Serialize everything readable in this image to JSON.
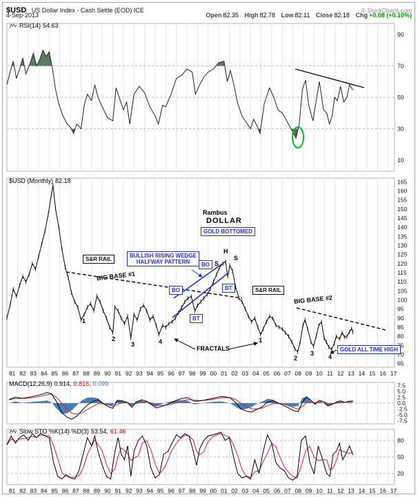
{
  "header": {
    "symbol": "$USD",
    "title": "US Dollar Index - Cash Settle (EOD) ICE",
    "copyright": "© StockCharts.com",
    "date": "4-Sep-2013",
    "quote": {
      "open_label": "Open",
      "open": "82.35",
      "high_label": "High",
      "high": "82.78",
      "low_label": "Low",
      "low": "82.11",
      "close_label": "Close",
      "close": "82.18",
      "chg_label": "Chg",
      "chg": "+0.08 (+0.10%)"
    }
  },
  "panel_labels": {
    "rsi_name": "RSI(14)",
    "rsi_value": "54.63",
    "price_name": "$USD (Monthly)",
    "price_value": "82.18",
    "macd_name": "MACD(12,26,9)",
    "macd_v1": "0.914,",
    "macd_v2": "0.816,",
    "macd_v3": "0.099",
    "sto_name": "Slow STO %K(14) %D(3)",
    "sto_v1": "53.54,",
    "sto_v2": "61.46"
  },
  "annotations": {
    "rambus": "Rambus",
    "dollar": "DOLLAR",
    "gold_bottomed": "GOLD BOTTOMED",
    "wedge_line1": "BULLISH RISING WEDGE",
    "wedge_line2": "HALFWAY PATTERN",
    "sr_rail": "S&R RAIL",
    "big_base_1": "BIG BASE #1",
    "big_base_2": "BIG BASE #2",
    "fractals": "FRACTALS",
    "gold_ath": "GOLD ALL TIME HIGH",
    "bo": "BO",
    "bt": "BT",
    "head": "H",
    "shoulder": "S",
    "n1": "1",
    "n2": "2",
    "n3": "3",
    "n4": "4"
  },
  "x_axis_labels": [
    "81",
    "82",
    "83",
    "84",
    "85",
    "86",
    "87",
    "88",
    "89",
    "90",
    "91",
    "92",
    "93",
    "94",
    "95",
    "96",
    "97",
    "98",
    "99",
    "00",
    "01",
    "02",
    "03",
    "04",
    "05",
    "06",
    "07",
    "08",
    "09",
    "10",
    "11",
    "12",
    "13",
    "14",
    "15",
    "16",
    "17"
  ],
  "chart_data": [
    {
      "type": "line",
      "panel": "rsi",
      "title": "RSI(14) 54.63",
      "ylim": [
        3,
        97
      ],
      "yticks": [
        90,
        70,
        50,
        30,
        10
      ],
      "hlines": [
        70,
        50,
        30
      ],
      "last_value": 54.63,
      "colors": {
        "line": "#222222",
        "fill_high": "#5c7a5c",
        "fill_low": "#7a5c5c"
      },
      "series": [
        {
          "name": "RSI(14)",
          "x": [
            1981.0,
            1981.3,
            1981.6,
            1981.9,
            1982.2,
            1982.5,
            1982.8,
            1983.2,
            1983.5,
            1983.8,
            1984.1,
            1984.4,
            1984.7,
            1985.0,
            1985.3,
            1985.6,
            1985.9,
            1986.3,
            1986.7,
            1987.0,
            1987.3,
            1987.6,
            1988.0,
            1988.3,
            1988.6,
            1989.0,
            1989.3,
            1989.6,
            1990.0,
            1990.5,
            1991.0,
            1991.3,
            1991.6,
            1992.0,
            1992.3,
            1992.6,
            1993.0,
            1993.5,
            1994.0,
            1994.5,
            1995.0,
            1995.3,
            1995.7,
            1996.0,
            1996.5,
            1997.0,
            1997.5,
            1998.0,
            1998.5,
            1998.8,
            1999.2,
            1999.6,
            2000.0,
            2000.5,
            2001.0,
            2001.5,
            2001.8,
            2002.1,
            2002.4,
            2002.8,
            2003.2,
            2003.6,
            2004.0,
            2004.3,
            2004.6,
            2004.9,
            2005.3,
            2005.8,
            2006.2,
            2006.6,
            2007.0,
            2007.5,
            2008.0,
            2008.3,
            2008.6,
            2008.9,
            2009.2,
            2009.5,
            2009.9,
            2010.2,
            2010.5,
            2010.9,
            2011.2,
            2011.45,
            2011.7,
            2011.95,
            2012.2,
            2012.5,
            2012.8,
            2013.1,
            2013.35,
            2013.67
          ],
          "y": [
            58,
            66,
            73,
            62,
            68,
            75,
            65,
            72,
            78,
            70,
            74,
            80,
            76,
            79,
            68,
            55,
            46,
            38,
            33,
            31,
            27,
            33,
            30,
            45,
            52,
            48,
            58,
            50,
            44,
            37,
            35,
            56,
            50,
            42,
            47,
            33,
            52,
            57,
            53,
            44,
            38,
            33,
            45,
            44,
            52,
            62,
            64,
            68,
            66,
            52,
            58,
            63,
            66,
            68,
            72,
            73,
            60,
            67,
            59,
            46,
            38,
            34,
            30,
            36,
            32,
            27,
            46,
            56,
            50,
            42,
            40,
            34,
            28,
            24,
            33,
            55,
            61,
            45,
            35,
            48,
            60,
            42,
            40,
            33,
            38,
            50,
            48,
            57,
            47,
            50,
            58,
            54.63
          ]
        }
      ]
    },
    {
      "type": "line",
      "panel": "price",
      "title": "$USD (Monthly) 82.18",
      "ylim": [
        63,
        167
      ],
      "yticks": [
        165,
        160,
        155,
        150,
        145,
        140,
        135,
        130,
        125,
        120,
        115,
        110,
        105,
        100,
        95,
        90,
        85,
        80,
        75,
        70,
        65
      ],
      "last_value": 82.18,
      "colors": {
        "line": "#000000"
      },
      "series": [
        {
          "name": "$USD monthly",
          "x": [
            1981.0,
            1981.3,
            1981.6,
            1981.9,
            1982.2,
            1982.5,
            1982.8,
            1983.1,
            1983.4,
            1983.7,
            1984.0,
            1984.3,
            1984.6,
            1984.9,
            1985.2,
            1985.35,
            1985.6,
            1985.9,
            1986.2,
            1986.5,
            1986.8,
            1987.1,
            1987.4,
            1987.7,
            1988.0,
            1988.3,
            1988.6,
            1988.9,
            1989.2,
            1989.5,
            1989.8,
            1990.1,
            1990.4,
            1990.7,
            1991.0,
            1991.2,
            1991.5,
            1991.8,
            1992.1,
            1992.4,
            1992.7,
            1993.0,
            1993.3,
            1993.6,
            1993.9,
            1994.2,
            1994.5,
            1994.8,
            1995.1,
            1995.35,
            1995.7,
            1996.0,
            1996.3,
            1996.6,
            1996.9,
            1997.2,
            1997.5,
            1997.8,
            1998.1,
            1998.4,
            1998.75,
            1999.0,
            1999.3,
            1999.6,
            1999.9,
            2000.2,
            2000.5,
            2000.8,
            2001.1,
            2001.4,
            2001.65,
            2001.85,
            2002.05,
            2002.3,
            2002.6,
            2002.9,
            2003.2,
            2003.5,
            2003.8,
            2004.1,
            2004.4,
            2004.7,
            2004.95,
            2005.2,
            2005.5,
            2005.8,
            2006.1,
            2006.4,
            2006.7,
            2007.0,
            2007.3,
            2007.6,
            2007.9,
            2008.2,
            2008.45,
            2008.7,
            2008.95,
            2009.15,
            2009.4,
            2009.7,
            2009.95,
            2010.2,
            2010.45,
            2010.7,
            2010.95,
            2011.15,
            2011.4,
            2011.65,
            2011.9,
            2012.1,
            2012.4,
            2012.65,
            2012.9,
            2013.1,
            2013.35,
            2013.55,
            2013.67
          ],
          "y": [
            90,
            97,
            106,
            102,
            108,
            113,
            110,
            114,
            120,
            117,
            124,
            131,
            138,
            147,
            158,
            163,
            150,
            140,
            128,
            118,
            112,
            104,
            99,
            96,
            89,
            92,
            96,
            98,
            94,
            102,
            99,
            94,
            90,
            85,
            82,
            96,
            94,
            90,
            87,
            91,
            79,
            92,
            89,
            95,
            97,
            94,
            89,
            91,
            86,
            81,
            86,
            85,
            87,
            88,
            90,
            93,
            96,
            99,
            101,
            102,
            94,
            97,
            99,
            101,
            103,
            106,
            110,
            114,
            118,
            120,
            121,
            113,
            119,
            116,
            107,
            101,
            99,
            95,
            91,
            88,
            90,
            85,
            81,
            84,
            88,
            91,
            90,
            86,
            85,
            84,
            82,
            80,
            77,
            73,
            71.5,
            77,
            86,
            89,
            84,
            77,
            74.5,
            80,
            86,
            88,
            79,
            77,
            74,
            72.8,
            76,
            80,
            78.5,
            82,
            79.5,
            79.8,
            82.5,
            84.3,
            82.18
          ]
        }
      ]
    },
    {
      "type": "line",
      "panel": "macd",
      "title": "MACD(12,26,9) 0.914, 0.816, 0.099",
      "ylim": [
        -8.75,
        8.75
      ],
      "yticks": [
        7.5,
        5.0,
        2.5,
        0.0,
        -2.5,
        -5.0,
        -7.5
      ],
      "ytick_labels": [
        "7.5",
        "5.0",
        "2.5",
        "0.0",
        "-2.5",
        "-5.0",
        "-7.5"
      ],
      "hlines": [
        0
      ],
      "last_values": {
        "macd": 0.914,
        "signal": 0.816,
        "hist": 0.099
      },
      "colors": {
        "line": "#000000",
        "signal": "#dd2222",
        "hist": "#4a7fb5"
      },
      "series": [
        {
          "name": "MACD",
          "x": [
            1981.2,
            1981.8,
            1982.4,
            1983.0,
            1983.6,
            1984.2,
            1984.8,
            1985.2,
            1985.7,
            1986.2,
            1986.7,
            1987.1,
            1987.6,
            1988.1,
            1988.6,
            1989.1,
            1989.6,
            1990.1,
            1990.6,
            1991.0,
            1991.4,
            1991.9,
            1992.4,
            1992.8,
            1993.2,
            1993.7,
            1994.2,
            1994.7,
            1995.1,
            1995.6,
            1996.1,
            1996.6,
            1997.1,
            1997.6,
            1998.1,
            1998.7,
            1999.2,
            1999.7,
            2000.2,
            2000.7,
            2001.2,
            2001.7,
            2002.1,
            2002.6,
            2003.1,
            2003.6,
            2004.1,
            2004.6,
            2005.1,
            2005.6,
            2006.1,
            2006.6,
            2007.1,
            2007.6,
            2008.1,
            2008.5,
            2008.9,
            2009.3,
            2009.7,
            2010.1,
            2010.5,
            2010.9,
            2011.3,
            2011.7,
            2012.1,
            2012.5,
            2012.9,
            2013.3,
            2013.67
          ],
          "y": [
            1.5,
            2.5,
            2.0,
            2.4,
            3.0,
            3.6,
            4.5,
            4.0,
            0.5,
            -4.0,
            -6.0,
            -6.8,
            -5.5,
            -3.0,
            -0.8,
            0.6,
            1.4,
            -0.2,
            -1.6,
            -2.2,
            0.8,
            1.0,
            0.2,
            -1.8,
            0.4,
            1.4,
            0.8,
            -0.8,
            -2.0,
            -1.4,
            -0.6,
            0.3,
            1.4,
            2.0,
            2.3,
            0.8,
            0.9,
            1.3,
            1.8,
            2.3,
            2.8,
            2.6,
            2.2,
            0.2,
            -2.4,
            -3.4,
            -3.8,
            -2.6,
            -1.6,
            0.4,
            1.0,
            0.1,
            -1.0,
            -2.0,
            -3.2,
            -3.6,
            0.4,
            2.6,
            1.2,
            -0.4,
            1.2,
            0.6,
            -1.2,
            -0.6,
            0.4,
            1.0,
            0.3,
            0.8,
            0.914
          ]
        }
      ]
    },
    {
      "type": "line",
      "panel": "sto",
      "title": "Slow STO %K(14) %D(3) 53.54, 61.46",
      "ylim": [
        0,
        100
      ],
      "yticks": [
        80,
        50,
        20
      ],
      "hlines": [
        80,
        50,
        20
      ],
      "last_values": {
        "k": 53.54,
        "d": 61.46
      },
      "colors": {
        "k": "#000000",
        "d": "#dd2222"
      },
      "series": [
        {
          "name": "Slow STO %K",
          "x": [
            1981.0,
            1981.4,
            1981.8,
            1982.2,
            1982.6,
            1983.0,
            1983.4,
            1983.8,
            1984.2,
            1984.6,
            1985.0,
            1985.4,
            1985.8,
            1986.2,
            1986.6,
            1987.0,
            1987.4,
            1987.8,
            1988.2,
            1988.6,
            1989.0,
            1989.3,
            1989.6,
            1990.0,
            1990.4,
            1990.8,
            1991.2,
            1991.5,
            1991.8,
            1992.1,
            1992.4,
            1992.7,
            1993.0,
            1993.4,
            1993.8,
            1994.2,
            1994.6,
            1995.0,
            1995.4,
            1995.8,
            1996.2,
            1996.6,
            1997.0,
            1997.4,
            1997.8,
            1998.2,
            1998.6,
            1998.9,
            1999.2,
            1999.6,
            2000.0,
            2000.4,
            2000.8,
            2001.2,
            2001.6,
            2002.0,
            2002.4,
            2002.8,
            2003.2,
            2003.6,
            2004.0,
            2004.4,
            2004.8,
            2005.2,
            2005.6,
            2006.0,
            2006.4,
            2006.8,
            2007.2,
            2007.6,
            2008.0,
            2008.4,
            2008.8,
            2009.2,
            2009.6,
            2010.0,
            2010.4,
            2010.8,
            2011.2,
            2011.5,
            2011.8,
            2012.1,
            2012.4,
            2012.7,
            2013.0,
            2013.35,
            2013.67
          ],
          "y": [
            72,
            88,
            75,
            85,
            90,
            80,
            92,
            85,
            93,
            88,
            85,
            40,
            15,
            10,
            18,
            12,
            10,
            25,
            55,
            85,
            70,
            88,
            60,
            35,
            15,
            10,
            60,
            85,
            55,
            45,
            70,
            15,
            60,
            80,
            88,
            70,
            30,
            12,
            18,
            55,
            60,
            75,
            90,
            85,
            92,
            88,
            60,
            35,
            65,
            80,
            88,
            90,
            92,
            95,
            80,
            85,
            50,
            20,
            12,
            15,
            10,
            45,
            20,
            60,
            90,
            75,
            40,
            30,
            25,
            12,
            8,
            15,
            80,
            88,
            40,
            20,
            70,
            45,
            20,
            15,
            55,
            60,
            75,
            45,
            55,
            70,
            53.54
          ]
        }
      ]
    }
  ]
}
